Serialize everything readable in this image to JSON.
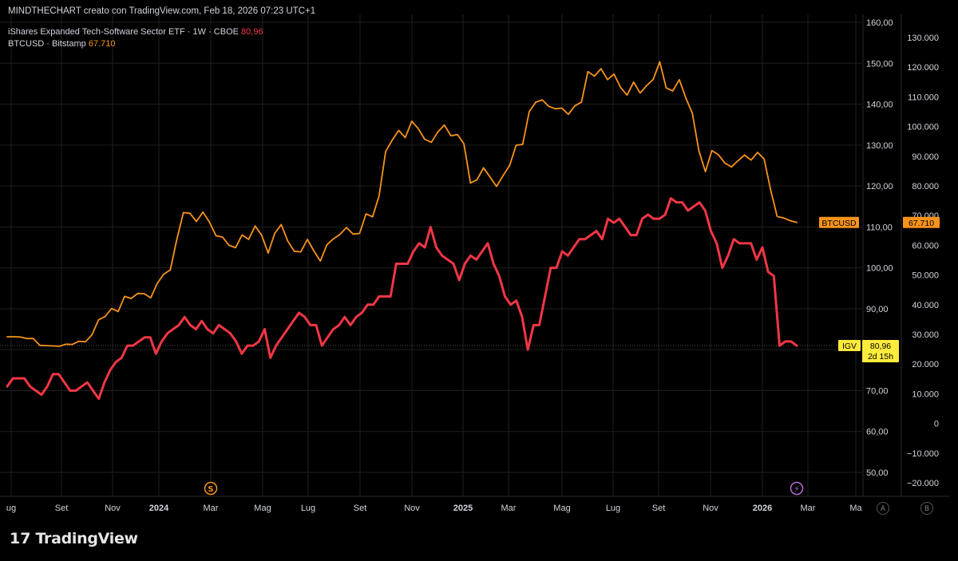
{
  "header": {
    "attribution": "MINDTHECHART creato con TradingView.com, Feb 18, 2026 07:23 UTC+1",
    "series1_label": "iShares Expanded Tech-Software Sector ETF · 1W · CBOE",
    "series1_value": "80,96",
    "series2_label": "BTCUSD · Bitstamp",
    "series2_value": "67.710"
  },
  "footer": {
    "brand": "TradingView",
    "logo_mark": "17",
    "btn_a": "A",
    "btn_b": "B"
  },
  "colors": {
    "background": "#000000",
    "igv": "#f23645",
    "btc": "#f7931a",
    "grid": "#1f1f1f",
    "axis_text": "#d1d4dc",
    "igv_badge": "#ffeb3b"
  },
  "chart_data": {
    "type": "line",
    "grid": true,
    "x_ticks": [
      "ug",
      "Set",
      "Nov",
      "2024",
      "Mar",
      "Mag",
      "Lug",
      "Set",
      "Nov",
      "2025",
      "Mar",
      "Mag",
      "Lug",
      "Set",
      "Nov",
      "2026",
      "Mar",
      "Ma"
    ],
    "x_tick_bold": [
      false,
      false,
      false,
      true,
      false,
      false,
      false,
      false,
      false,
      true,
      false,
      false,
      false,
      false,
      false,
      true,
      false,
      false
    ],
    "left_axis": {
      "ticks": [
        "160,00",
        "150,00",
        "140,00",
        "130,00",
        "120,00",
        "110,00",
        "100,00",
        "90,00",
        "80,00",
        "70,00",
        "60,00",
        "50,00"
      ],
      "range": [
        48,
        162
      ]
    },
    "right_axis": {
      "ticks": [
        "130.000",
        "120.000",
        "110.000",
        "100.000",
        "90.000",
        "80.000",
        "70.000",
        "60.000",
        "50.000",
        "40.000",
        "30.000",
        "20.000",
        "10.000",
        "0",
        "−10.000",
        "−20.000"
      ],
      "range": [
        -22000,
        134000
      ]
    },
    "series": [
      {
        "name": "IGV",
        "axis": "left",
        "last_value": "80,96",
        "countdown": "2d 15h",
        "values": [
          71,
          73,
          73,
          73,
          71,
          70,
          69,
          71,
          74,
          74,
          72,
          70,
          70,
          71,
          72,
          70,
          68,
          72,
          75,
          77,
          78,
          81,
          81,
          82,
          83,
          83,
          79,
          82,
          84,
          85,
          86,
          88,
          86,
          85,
          87,
          85,
          84,
          86,
          85,
          84,
          82,
          79,
          81,
          81,
          82,
          85,
          78,
          81,
          83,
          85,
          87,
          89,
          88,
          86,
          86,
          81,
          83,
          85,
          86,
          88,
          86,
          88,
          89,
          91,
          91,
          93,
          93,
          93,
          101,
          101,
          101,
          104,
          106,
          105,
          110,
          105,
          103,
          102,
          101,
          97,
          101,
          103,
          102,
          104,
          106,
          101,
          98,
          93,
          91,
          92,
          88,
          80,
          86,
          86,
          93,
          100,
          100,
          104,
          103,
          105,
          107,
          107,
          108,
          109,
          107,
          112,
          111,
          112,
          110,
          108,
          108,
          112,
          113,
          112,
          112,
          113,
          117,
          116,
          116,
          114,
          115,
          116,
          114,
          109,
          106,
          100,
          103,
          107,
          106,
          106,
          106,
          102,
          105,
          99,
          98,
          81,
          82,
          82,
          81
        ],
        "x_start_frac": 0.0,
        "x_end_frac": 0.926
      },
      {
        "name": "BTCUSD",
        "axis": "right",
        "last_value": "67.710",
        "values": [
          29200,
          29200,
          29100,
          28600,
          28600,
          26300,
          26200,
          26100,
          26000,
          26700,
          26600,
          27700,
          27500,
          29900,
          34900,
          36000,
          38700,
          37700,
          42800,
          42100,
          43800,
          43700,
          42300,
          47200,
          50300,
          51700,
          62000,
          71000,
          70800,
          68000,
          71200,
          67800,
          63200,
          62800,
          60000,
          59200,
          63500,
          62000,
          66500,
          63400,
          57400,
          64000,
          67000,
          61400,
          58000,
          57800,
          62000,
          58100,
          54700,
          60200,
          62200,
          63700,
          66000,
          63800,
          64000,
          70600,
          69600,
          76700,
          91600,
          95400,
          98700,
          96300,
          101800,
          99300,
          95700,
          94700,
          98200,
          100500,
          96900,
          97300,
          94200,
          81000,
          82100,
          86100,
          83000,
          79800,
          83500,
          86900,
          93700,
          94000,
          105000,
          108200,
          109000,
          106800,
          106000,
          106200,
          104100,
          107000,
          108200,
          118500,
          117000,
          119500,
          115800,
          117700,
          113200,
          110600,
          115000,
          111300,
          113800,
          115900,
          121800,
          113000,
          112000,
          115800,
          109700,
          104500,
          91900,
          84800,
          91900,
          90500,
          87700,
          86400,
          88500,
          90400,
          88700,
          91300,
          89100,
          78700,
          69700,
          69200,
          68300,
          67700
        ],
        "x_start_frac": 0.0,
        "x_end_frac": 0.926
      }
    ],
    "event_markers": [
      {
        "label": "S",
        "color": "#f7931a",
        "x_tick": "Mar"
      },
      {
        "label": "⚡",
        "color": "#b36ad4",
        "x_tick": "Mar2"
      }
    ]
  }
}
